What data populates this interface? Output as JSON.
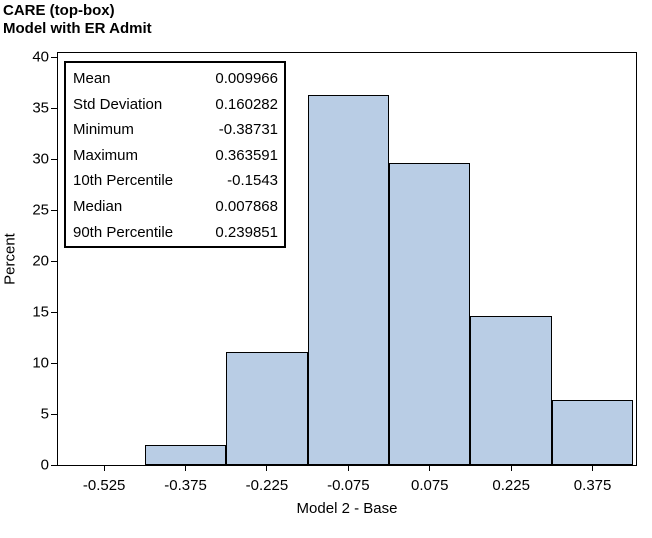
{
  "header": {
    "title_line1": "CARE (top-box)",
    "title_line2": "Model with ER Admit"
  },
  "stats_box": {
    "rows": [
      {
        "label": "Mean",
        "value": "0.009966"
      },
      {
        "label": "Std Deviation",
        "value": "0.160282"
      },
      {
        "label": "Minimum",
        "value": "-0.38731"
      },
      {
        "label": "Maximum",
        "value": "0.363591"
      },
      {
        "label": "10th Percentile",
        "value": "-0.1543"
      },
      {
        "label": "Median",
        "value": "0.007868"
      },
      {
        "label": "90th Percentile",
        "value": "0.239851"
      }
    ]
  },
  "chart_data": {
    "type": "bar",
    "subtype": "histogram",
    "title": "CARE (top-box) — Model with ER Admit",
    "xlabel": "Model 2 - Base",
    "ylabel": "Percent",
    "bin_centers": [
      -0.525,
      -0.375,
      -0.225,
      -0.075,
      0.075,
      0.225,
      0.375
    ],
    "bin_width": 0.15,
    "values_percent": [
      0,
      2.0,
      11.1,
      36.3,
      29.6,
      14.6,
      6.4
    ],
    "ylim": [
      0,
      40
    ],
    "yticks": [
      0,
      5,
      10,
      15,
      20,
      25,
      30,
      35,
      40
    ],
    "ytick_labels": [
      "0",
      "5",
      "10",
      "15",
      "20",
      "25",
      "30",
      "35",
      "40"
    ],
    "xticks": [
      -0.525,
      -0.375,
      -0.225,
      -0.075,
      0.075,
      0.225,
      0.375
    ],
    "xtick_labels": [
      "-0.525",
      "-0.375",
      "-0.225",
      "-0.075",
      "0.075",
      "0.225",
      "0.375"
    ],
    "xlim": [
      -0.61,
      0.455
    ],
    "grid": false,
    "legend": null,
    "bar_fill": "#b9cde5",
    "bar_border": "#000000",
    "frame_border": "#000000"
  }
}
